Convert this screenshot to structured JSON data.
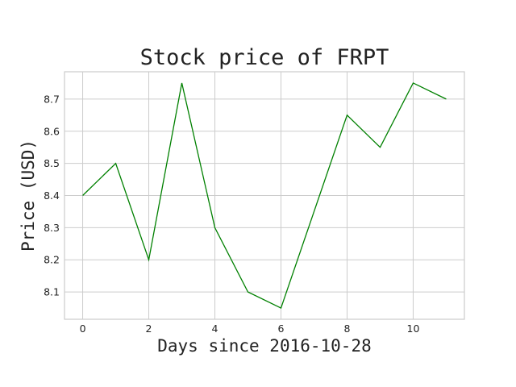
{
  "chart_data": {
    "type": "line",
    "title": "Stock price of FRPT",
    "xlabel": "Days since 2016-10-28",
    "ylabel": "Price (USD)",
    "x": [
      0,
      1,
      2,
      3,
      4,
      5,
      6,
      7,
      8,
      9,
      10,
      11
    ],
    "series": [
      {
        "values": [
          8.4,
          8.5,
          8.2,
          8.75,
          8.3,
          8.1,
          8.05,
          8.35,
          8.65,
          8.55,
          8.75,
          8.7
        ],
        "color": "#008000"
      }
    ],
    "xlim": [
      -0.55,
      11.55
    ],
    "ylim": [
      8.015,
      8.785
    ],
    "xticks": [
      0,
      2,
      4,
      6,
      8,
      10
    ],
    "yticks": [
      8.1,
      8.2,
      8.3,
      8.4,
      8.5,
      8.6,
      8.7
    ],
    "xtick_labels": [
      "0",
      "2",
      "4",
      "6",
      "8",
      "10"
    ],
    "ytick_labels": [
      "8.1",
      "8.2",
      "8.3",
      "8.4",
      "8.5",
      "8.6",
      "8.7"
    ],
    "grid": true,
    "legend": false
  }
}
